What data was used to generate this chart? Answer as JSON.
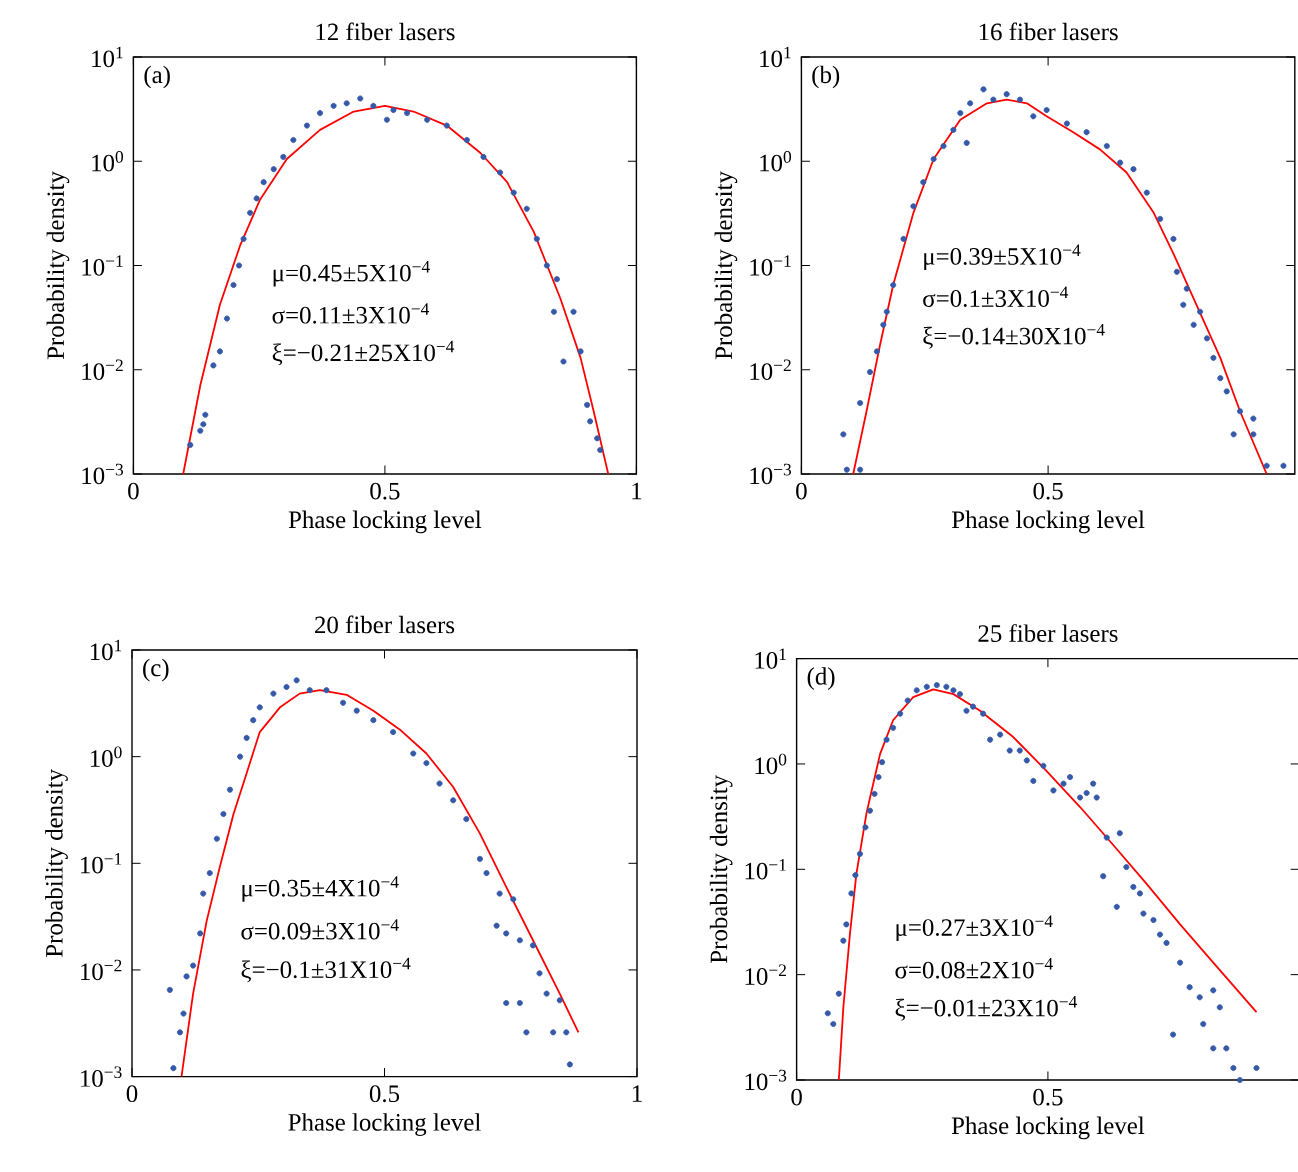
{
  "chart_data": [
    {
      "type": "scatter",
      "title": "12 fiber lasers",
      "xlabel": "Phase locking level",
      "ylabel": "Probability density",
      "xlim": [
        0,
        1
      ],
      "xticks": [
        0,
        0.5,
        1
      ],
      "ylim": [
        0.001,
        10
      ],
      "log": true,
      "yticks": [
        {
          "value": 0.001,
          "label": "10$^{−3}$"
        },
        {
          "value": 0.01,
          "label": "10$^{−2}$"
        },
        {
          "value": 0.1,
          "label": "10$^{−1}$"
        },
        {
          "value": 1,
          "label": "10$^{0}$"
        },
        {
          "value": 10,
          "label": "10$^{1}$"
        }
      ],
      "annotations": [
        "(a)",
        "μ=0.45±5X10$^{−4}$",
        "σ=0.11±3X10$^{−4}$",
        "ξ=−0.21±25X10$^{−4}$"
      ],
      "series": [
        {
          "color": "#3558a8",
          "marker": "circle",
          "x": [
            0.113,
            0.133,
            0.139,
            0.143,
            0.159,
            0.172,
            0.186,
            0.199,
            0.21,
            0.219,
            0.232,
            0.245,
            0.259,
            0.279,
            0.298,
            0.318,
            0.345,
            0.371,
            0.398,
            0.424,
            0.451,
            0.477,
            0.504,
            0.517,
            0.544,
            0.584,
            0.623,
            0.663,
            0.696,
            0.729,
            0.756,
            0.782,
            0.802,
            0.822,
            0.836,
            0.842,
            0.855,
            0.875,
            0.889,
            0.902,
            0.908,
            0.922,
            0.928
          ],
          "values": [
            0.0019,
            0.0026,
            0.003,
            0.0037,
            0.011,
            0.015,
            0.031,
            0.065,
            0.1,
            0.18,
            0.32,
            0.44,
            0.63,
            0.84,
            1.1,
            1.6,
            2.2,
            2.9,
            3.4,
            3.6,
            4.0,
            3.4,
            2.5,
            3.1,
            2.9,
            2.5,
            2.2,
            1.6,
            1.1,
            0.78,
            0.5,
            0.35,
            0.18,
            0.1,
            0.036,
            0.074,
            0.012,
            0.036,
            0.015,
            0.0046,
            0.0032,
            0.0022,
            0.0017
          ]
        },
        {
          "type": "line",
          "color": "#ff0000",
          "marker": "none",
          "x": [
            0.099,
            0.133,
            0.172,
            0.212,
            0.252,
            0.305,
            0.371,
            0.438,
            0.5,
            0.557,
            0.623,
            0.69,
            0.743,
            0.796,
            0.849,
            0.889,
            0.915,
            0.944
          ],
          "values": [
            0.001,
            0.0071,
            0.042,
            0.155,
            0.43,
            1.05,
            2.0,
            3.0,
            3.4,
            3.0,
            2.2,
            1.2,
            0.63,
            0.21,
            0.048,
            0.013,
            0.004,
            0.001
          ]
        }
      ]
    },
    {
      "type": "scatter",
      "title": "16 fiber lasers",
      "xlabel": "Phase locking level",
      "ylabel": "Probability density",
      "xlim": [
        0,
        1
      ],
      "xticks": [
        0,
        0.5
      ],
      "ylim": [
        0.001,
        10
      ],
      "log": true,
      "yticks": [
        {
          "value": 0.001,
          "label": "10$^{−3}$"
        },
        {
          "value": 0.01,
          "label": "10$^{−2}$"
        },
        {
          "value": 0.1,
          "label": "10$^{−1}$"
        },
        {
          "value": 1,
          "label": "10$^{0}$"
        },
        {
          "value": 10,
          "label": "10$^{1}$"
        }
      ],
      "annotations": [
        "(b)",
        "μ=0.39±5X10$^{−4}$",
        "σ=0.1±3X10$^{−4}$",
        "ξ=−0.14±30X10$^{−4}$"
      ],
      "series": [
        {
          "color": "#3558a8",
          "marker": "circle",
          "x": [
            0.085,
            0.092,
            0.119,
            0.119,
            0.139,
            0.153,
            0.166,
            0.173,
            0.186,
            0.207,
            0.227,
            0.247,
            0.268,
            0.288,
            0.308,
            0.322,
            0.335,
            0.342,
            0.369,
            0.389,
            0.416,
            0.443,
            0.47,
            0.497,
            0.538,
            0.578,
            0.619,
            0.646,
            0.673,
            0.7,
            0.727,
            0.754,
            0.761,
            0.774,
            0.781,
            0.795,
            0.808,
            0.822,
            0.835,
            0.849,
            0.862,
            0.876,
            0.889,
            0.916,
            0.916,
            0.943,
            0.977
          ],
          "values": [
            0.0024,
            0.0011,
            0.0011,
            0.0048,
            0.0095,
            0.015,
            0.027,
            0.036,
            0.065,
            0.18,
            0.37,
            0.63,
            1.05,
            1.4,
            2.0,
            2.9,
            1.5,
            3.6,
            4.9,
            3.9,
            4.4,
            3.9,
            2.7,
            3.1,
            2.3,
            1.9,
            1.4,
            0.97,
            0.84,
            0.5,
            0.28,
            0.18,
            0.087,
            0.042,
            0.06,
            0.027,
            0.036,
            0.02,
            0.013,
            0.0083,
            0.0062,
            0.0024,
            0.004,
            0.0034,
            0.0024,
            0.0012,
            0.0012
          ]
        },
        {
          "type": "line",
          "color": "#ff0000",
          "marker": "none",
          "x": [
            0.105,
            0.132,
            0.159,
            0.186,
            0.227,
            0.268,
            0.322,
            0.376,
            0.416,
            0.457,
            0.497,
            0.551,
            0.605,
            0.659,
            0.714,
            0.754,
            0.795,
            0.849,
            0.889,
            0.943
          ],
          "values": [
            0.001,
            0.004,
            0.017,
            0.065,
            0.32,
            1.05,
            2.5,
            3.6,
            3.9,
            3.6,
            2.7,
            1.9,
            1.3,
            0.78,
            0.32,
            0.13,
            0.048,
            0.013,
            0.004,
            0.001
          ]
        }
      ]
    },
    {
      "type": "scatter",
      "title": "20 fiber lasers",
      "xlabel": "Phase locking level",
      "ylabel": "Probability density",
      "xlim": [
        0,
        1
      ],
      "xticks": [
        0,
        0.5,
        1
      ],
      "ylim": [
        0.001,
        10
      ],
      "log": true,
      "yticks": [
        {
          "value": 0.001,
          "label": "10$^{−3}$"
        },
        {
          "value": 0.01,
          "label": "10$^{−2}$"
        },
        {
          "value": 0.1,
          "label": "10$^{−1}$"
        },
        {
          "value": 1,
          "label": "10$^{0}$"
        },
        {
          "value": 10,
          "label": "10$^{1}$"
        }
      ],
      "annotations": [
        "(c)",
        "μ=0.35±4X10$^{−4}$",
        "σ=0.09±3X10$^{−4}$",
        "ξ=−0.1±31X10$^{−4}$"
      ],
      "series": [
        {
          "color": "#3558a8",
          "marker": "circle",
          "x": [
            0.075,
            0.082,
            0.095,
            0.102,
            0.108,
            0.121,
            0.135,
            0.141,
            0.154,
            0.168,
            0.181,
            0.194,
            0.214,
            0.227,
            0.24,
            0.253,
            0.28,
            0.306,
            0.326,
            0.352,
            0.385,
            0.418,
            0.445,
            0.478,
            0.517,
            0.557,
            0.583,
            0.609,
            0.636,
            0.662,
            0.689,
            0.702,
            0.722,
            0.728,
            0.741,
            0.741,
            0.755,
            0.768,
            0.768,
            0.781,
            0.794,
            0.807,
            0.821,
            0.834,
            0.847,
            0.86,
            0.867
          ],
          "values": [
            0.0065,
            0.0012,
            0.0026,
            0.0039,
            0.0087,
            0.011,
            0.022,
            0.052,
            0.081,
            0.17,
            0.29,
            0.49,
            1.0,
            1.5,
            2.2,
            2.9,
            3.9,
            4.5,
            5.2,
            4.2,
            4.2,
            3.2,
            2.7,
            2.2,
            1.7,
            1.07,
            0.87,
            0.56,
            0.39,
            0.26,
            0.11,
            0.081,
            0.026,
            0.052,
            0.022,
            0.0049,
            0.046,
            0.019,
            0.0049,
            0.0026,
            0.017,
            0.0093,
            0.006,
            0.0026,
            0.0052,
            0.0026,
            0.0013
          ]
        },
        {
          "type": "line",
          "color": "#ff0000",
          "marker": "none",
          "x": [
            0.098,
            0.121,
            0.148,
            0.174,
            0.201,
            0.227,
            0.253,
            0.293,
            0.332,
            0.372,
            0.425,
            0.478,
            0.53,
            0.583,
            0.636,
            0.689,
            0.741,
            0.794,
            0.847,
            0.884
          ],
          "values": [
            0.001,
            0.006,
            0.029,
            0.093,
            0.29,
            0.7,
            1.7,
            2.9,
            3.9,
            4.2,
            3.8,
            2.7,
            1.8,
            1.07,
            0.52,
            0.19,
            0.06,
            0.019,
            0.006,
            0.0026
          ]
        }
      ]
    },
    {
      "type": "scatter",
      "title": "25 fiber lasers",
      "xlabel": "Phase locking level",
      "ylabel": "Probability density",
      "xlim": [
        0,
        1
      ],
      "xticks": [
        0,
        0.5
      ],
      "ylim": [
        0.001,
        10
      ],
      "log": true,
      "yticks": [
        {
          "value": 0.001,
          "label": "10$^{−3}$"
        },
        {
          "value": 0.01,
          "label": "10$^{−2}$"
        },
        {
          "value": 0.1,
          "label": "10$^{−1}$"
        },
        {
          "value": 1,
          "label": "10$^{0}$"
        },
        {
          "value": 10,
          "label": "10$^{1}$"
        }
      ],
      "annotations": [
        "(d)",
        "μ=0.27±3X10$^{−4}$",
        "σ=0.08±2X10$^{−4}$",
        "ξ=−0.01±23X10$^{−4}$"
      ],
      "series": [
        {
          "color": "#3558a8",
          "marker": "circle",
          "x": [
            0.062,
            0.073,
            0.084,
            0.093,
            0.099,
            0.109,
            0.117,
            0.126,
            0.137,
            0.146,
            0.155,
            0.163,
            0.17,
            0.179,
            0.192,
            0.206,
            0.221,
            0.239,
            0.259,
            0.279,
            0.298,
            0.312,
            0.325,
            0.338,
            0.351,
            0.371,
            0.385,
            0.405,
            0.424,
            0.444,
            0.458,
            0.471,
            0.491,
            0.511,
            0.531,
            0.544,
            0.564,
            0.577,
            0.59,
            0.597,
            0.61,
            0.617,
            0.637,
            0.643,
            0.656,
            0.67,
            0.683,
            0.69,
            0.71,
            0.723,
            0.736,
            0.749,
            0.763,
            0.782,
            0.802,
            0.809,
            0.829,
            0.829,
            0.842,
            0.855,
            0.869,
            0.882,
            0.915
          ],
          "values": [
            0.0043,
            0.0034,
            0.0066,
            0.021,
            0.03,
            0.059,
            0.088,
            0.14,
            0.25,
            0.36,
            0.52,
            0.75,
            1.04,
            1.7,
            2.2,
            3.0,
            4.0,
            5.0,
            5.4,
            5.6,
            5.4,
            5.0,
            4.6,
            3.2,
            3.5,
            3.0,
            1.7,
            1.9,
            1.34,
            1.34,
            1.08,
            0.69,
            0.96,
            0.56,
            0.65,
            0.75,
            0.48,
            0.53,
            0.65,
            0.48,
            0.086,
            0.2,
            0.044,
            0.22,
            0.105,
            0.068,
            0.059,
            0.038,
            0.033,
            0.024,
            0.02,
            0.0027,
            0.013,
            0.0076,
            0.0061,
            0.0034,
            0.0071,
            0.002,
            0.0049,
            0.002,
            0.0013,
            0.001,
            0.0013
          ]
        },
        {
          "type": "line",
          "color": "#ff0000",
          "marker": "none",
          "x": [
            0.084,
            0.093,
            0.106,
            0.119,
            0.139,
            0.166,
            0.192,
            0.232,
            0.272,
            0.312,
            0.365,
            0.431,
            0.497,
            0.564,
            0.63,
            0.696,
            0.763,
            0.829,
            0.915
          ],
          "values": [
            0.001,
            0.0049,
            0.024,
            0.091,
            0.34,
            1.24,
            2.6,
            4.3,
            5.1,
            4.6,
            3.2,
            1.8,
            0.86,
            0.39,
            0.17,
            0.073,
            0.03,
            0.013,
            0.0044
          ]
        }
      ]
    }
  ]
}
